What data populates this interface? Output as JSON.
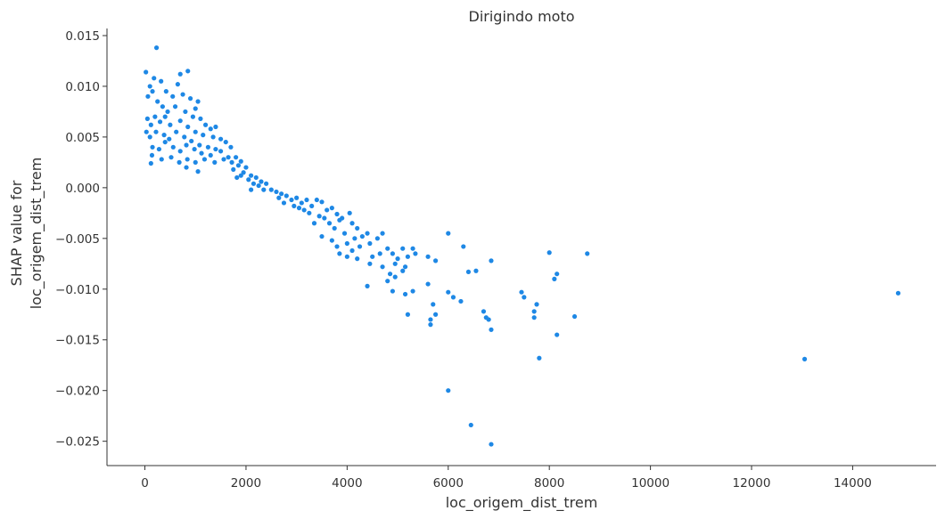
{
  "chart_data": {
    "type": "scatter",
    "title": "Dirigindo moto",
    "xlabel": "loc_origem_dist_trem",
    "ylabel": [
      "SHAP value for",
      "loc_origem_dist_trem"
    ],
    "xlim": [
      -750,
      15650
    ],
    "ylim": [
      -0.0274,
      0.0157
    ],
    "xticks": [
      0,
      2000,
      4000,
      6000,
      8000,
      10000,
      12000,
      14000
    ],
    "xtick_labels": [
      "0",
      "2000",
      "4000",
      "6000",
      "8000",
      "10000",
      "12000",
      "14000"
    ],
    "yticks": [
      0.015,
      0.01,
      0.005,
      0.0,
      -0.005,
      -0.01,
      -0.015,
      -0.02,
      -0.025
    ],
    "ytick_labels": [
      "0.015",
      "0.010",
      "0.005",
      "0.000",
      "−0.005",
      "−0.010",
      "−0.015",
      "−0.020",
      "−0.025"
    ],
    "grid": false,
    "series": [
      {
        "color": "#1e88e5",
        "points": [
          [
            230,
            0.0138
          ],
          [
            20,
            0.0114
          ],
          [
            850,
            0.0115
          ],
          [
            700,
            0.0112
          ],
          [
            100,
            0.01
          ],
          [
            180,
            0.0108
          ],
          [
            320,
            0.0105
          ],
          [
            420,
            0.0095
          ],
          [
            550,
            0.009
          ],
          [
            650,
            0.0102
          ],
          [
            750,
            0.0092
          ],
          [
            900,
            0.0088
          ],
          [
            1050,
            0.0085
          ],
          [
            1000,
            0.0078
          ],
          [
            60,
            0.009
          ],
          [
            150,
            0.0095
          ],
          [
            250,
            0.0085
          ],
          [
            350,
            0.008
          ],
          [
            450,
            0.0075
          ],
          [
            600,
            0.008
          ],
          [
            800,
            0.0075
          ],
          [
            950,
            0.007
          ],
          [
            1100,
            0.0068
          ],
          [
            1200,
            0.0062
          ],
          [
            1300,
            0.0058
          ],
          [
            1400,
            0.006
          ],
          [
            50,
            0.0068
          ],
          [
            120,
            0.0062
          ],
          [
            200,
            0.007
          ],
          [
            300,
            0.0065
          ],
          [
            400,
            0.007
          ],
          [
            500,
            0.0062
          ],
          [
            700,
            0.0066
          ],
          [
            850,
            0.006
          ],
          [
            1000,
            0.0055
          ],
          [
            1150,
            0.0052
          ],
          [
            1350,
            0.005
          ],
          [
            1500,
            0.0048
          ],
          [
            1600,
            0.0045
          ],
          [
            30,
            0.0055
          ],
          [
            100,
            0.005
          ],
          [
            220,
            0.0055
          ],
          [
            380,
            0.0052
          ],
          [
            480,
            0.0048
          ],
          [
            620,
            0.0055
          ],
          [
            780,
            0.005
          ],
          [
            920,
            0.0046
          ],
          [
            1080,
            0.0042
          ],
          [
            1250,
            0.004
          ],
          [
            1400,
            0.0038
          ],
          [
            1700,
            0.004
          ],
          [
            150,
            0.004
          ],
          [
            280,
            0.0038
          ],
          [
            400,
            0.0045
          ],
          [
            560,
            0.004
          ],
          [
            700,
            0.0036
          ],
          [
            820,
            0.0042
          ],
          [
            980,
            0.0038
          ],
          [
            1120,
            0.0034
          ],
          [
            1300,
            0.0032
          ],
          [
            1500,
            0.0036
          ],
          [
            1650,
            0.003
          ],
          [
            140,
            0.0032
          ],
          [
            330,
            0.0028
          ],
          [
            520,
            0.003
          ],
          [
            680,
            0.0025
          ],
          [
            840,
            0.0028
          ],
          [
            1000,
            0.0025
          ],
          [
            1180,
            0.0028
          ],
          [
            1380,
            0.0025
          ],
          [
            1560,
            0.0028
          ],
          [
            1720,
            0.0025
          ],
          [
            1850,
            0.0022
          ],
          [
            120,
            0.0024
          ],
          [
            820,
            0.002
          ],
          [
            1050,
            0.0016
          ],
          [
            1800,
            0.003
          ],
          [
            1900,
            0.0026
          ],
          [
            2000,
            0.002
          ],
          [
            1750,
            0.0018
          ],
          [
            1950,
            0.0015
          ],
          [
            2100,
            0.0012
          ],
          [
            1820,
            0.001
          ],
          [
            2050,
            0.0008
          ],
          [
            2200,
            0.001
          ],
          [
            2300,
            0.0006
          ],
          [
            2150,
            0.0004
          ],
          [
            1900,
            0.0012
          ],
          [
            2250,
            0.0002
          ],
          [
            2400,
            0.0004
          ],
          [
            2350,
            -0.0002
          ],
          [
            2100,
            -0.0002
          ],
          [
            2500,
            -0.0002
          ],
          [
            2600,
            -0.0004
          ],
          [
            2700,
            -0.0006
          ],
          [
            2650,
            -0.001
          ],
          [
            2800,
            -0.0008
          ],
          [
            2900,
            -0.0012
          ],
          [
            3000,
            -0.001
          ],
          [
            2750,
            -0.0015
          ],
          [
            3100,
            -0.0015
          ],
          [
            3200,
            -0.0012
          ],
          [
            3050,
            -0.002
          ],
          [
            3300,
            -0.0018
          ],
          [
            3400,
            -0.0012
          ],
          [
            3500,
            -0.0014
          ],
          [
            3250,
            -0.0025
          ],
          [
            3450,
            -0.0028
          ],
          [
            3600,
            -0.0022
          ],
          [
            3700,
            -0.002
          ],
          [
            3150,
            -0.0022
          ],
          [
            2950,
            -0.0018
          ],
          [
            3550,
            -0.003
          ],
          [
            3800,
            -0.0026
          ],
          [
            3900,
            -0.003
          ],
          [
            4050,
            -0.0025
          ],
          [
            3650,
            -0.0035
          ],
          [
            3350,
            -0.0035
          ],
          [
            3750,
            -0.004
          ],
          [
            3850,
            -0.0032
          ],
          [
            4100,
            -0.0035
          ],
          [
            3950,
            -0.0045
          ],
          [
            4200,
            -0.004
          ],
          [
            3500,
            -0.0048
          ],
          [
            3700,
            -0.0052
          ],
          [
            4000,
            -0.0055
          ],
          [
            4150,
            -0.005
          ],
          [
            4300,
            -0.0048
          ],
          [
            4400,
            -0.0045
          ],
          [
            3800,
            -0.0058
          ],
          [
            4100,
            -0.0062
          ],
          [
            4250,
            -0.0058
          ],
          [
            4450,
            -0.0055
          ],
          [
            4600,
            -0.005
          ],
          [
            4700,
            -0.0045
          ],
          [
            3850,
            -0.0065
          ],
          [
            4000,
            -0.0068
          ],
          [
            4200,
            -0.007
          ],
          [
            4500,
            -0.0068
          ],
          [
            4650,
            -0.0065
          ],
          [
            4800,
            -0.006
          ],
          [
            4900,
            -0.0065
          ],
          [
            5000,
            -0.007
          ],
          [
            5100,
            -0.006
          ],
          [
            5200,
            -0.0068
          ],
          [
            4450,
            -0.0075
          ],
          [
            4700,
            -0.0078
          ],
          [
            4950,
            -0.0075
          ],
          [
            5150,
            -0.0078
          ],
          [
            5300,
            -0.006
          ],
          [
            4850,
            -0.0085
          ],
          [
            4950,
            -0.0088
          ],
          [
            5100,
            -0.0082
          ],
          [
            5350,
            -0.0065
          ],
          [
            4800,
            -0.0092
          ],
          [
            4400,
            -0.0097
          ],
          [
            4900,
            -0.0102
          ],
          [
            5150,
            -0.0105
          ],
          [
            5300,
            -0.0102
          ],
          [
            5600,
            -0.0095
          ],
          [
            5700,
            -0.0115
          ],
          [
            5650,
            -0.013
          ],
          [
            5750,
            -0.0125
          ],
          [
            5650,
            -0.0135
          ],
          [
            5200,
            -0.0125
          ],
          [
            5600,
            -0.0068
          ],
          [
            5750,
            -0.0072
          ],
          [
            6000,
            -0.0045
          ],
          [
            6300,
            -0.0058
          ],
          [
            6400,
            -0.0083
          ],
          [
            6550,
            -0.0082
          ],
          [
            6850,
            -0.0072
          ],
          [
            6100,
            -0.0108
          ],
          [
            6000,
            -0.0103
          ],
          [
            6250,
            -0.0112
          ],
          [
            6700,
            -0.0122
          ],
          [
            6800,
            -0.013
          ],
          [
            6850,
            -0.014
          ],
          [
            6750,
            -0.0128
          ],
          [
            7450,
            -0.0103
          ],
          [
            7500,
            -0.0108
          ],
          [
            7700,
            -0.0122
          ],
          [
            7700,
            -0.0128
          ],
          [
            7750,
            -0.0115
          ],
          [
            7800,
            -0.0168
          ],
          [
            8000,
            -0.0064
          ],
          [
            8100,
            -0.009
          ],
          [
            8150,
            -0.0085
          ],
          [
            8150,
            -0.0145
          ],
          [
            8500,
            -0.0127
          ],
          [
            8750,
            -0.0065
          ],
          [
            6000,
            -0.02
          ],
          [
            6450,
            -0.0234
          ],
          [
            6850,
            -0.0253
          ],
          [
            13050,
            -0.0169
          ],
          [
            14900,
            -0.0104
          ]
        ]
      }
    ]
  }
}
